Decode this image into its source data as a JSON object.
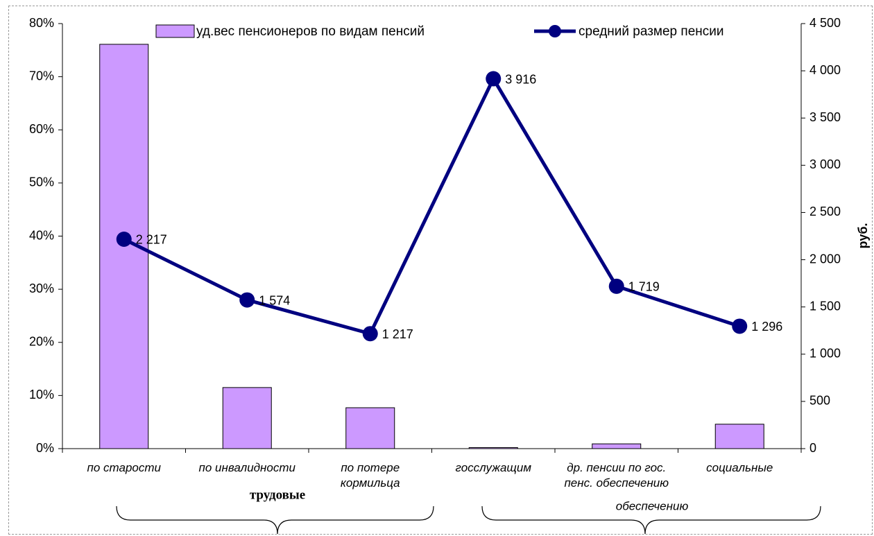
{
  "chart_data": {
    "type": "bar-line",
    "categories": [
      "по старости",
      "по инвалидности",
      "по потере кормильца",
      "госслужащим",
      "др. пенсии по гос. пенс. обеспечению",
      "социальные"
    ],
    "annotations": [
      "трудовые",
      "обеспечению"
    ],
    "y2_label": "руб.",
    "series": [
      {
        "name": "уд.вес пенсионеров по видам пенсий",
        "type": "bar",
        "color": "#cc99ff",
        "values": [
          76.1,
          11.5,
          7.7,
          0.2,
          0.9,
          4.6
        ]
      },
      {
        "name": "средний размер пенсии",
        "type": "line",
        "axis": "y2",
        "color": "#000080",
        "values": [
          2217,
          1574,
          1217,
          3916,
          1719,
          1296
        ],
        "value_labels": [
          "2 217",
          "1 574",
          "1 217",
          "3 916",
          "1 719",
          "1 296"
        ]
      }
    ],
    "ylim": [
      0,
      80
    ],
    "yticks": [
      {
        "value": 0,
        "label": "0%"
      },
      {
        "value": 10,
        "label": "10%"
      },
      {
        "value": 20,
        "label": "20%"
      },
      {
        "value": 30,
        "label": "30%"
      },
      {
        "value": 40,
        "label": "40%"
      },
      {
        "value": 50,
        "label": "50%"
      },
      {
        "value": 60,
        "label": "60%"
      },
      {
        "value": 70,
        "label": "70%"
      },
      {
        "value": 80,
        "label": "80%"
      }
    ],
    "y2lim": [
      0,
      4500
    ],
    "y2ticks": [
      0,
      500,
      {
        "value": 1000,
        "label": "1 000"
      },
      {
        "value": 1500,
        "label": "1 500"
      },
      {
        "value": 2000,
        "label": "2 000"
      },
      {
        "value": 2500,
        "label": "2 500"
      },
      {
        "value": 3000,
        "label": "3 000"
      },
      {
        "value": 3500,
        "label": "3 500"
      },
      {
        "value": 4000,
        "label": "4 000"
      },
      {
        "value": 4500,
        "label": "4 500"
      }
    ],
    "grid": false
  }
}
